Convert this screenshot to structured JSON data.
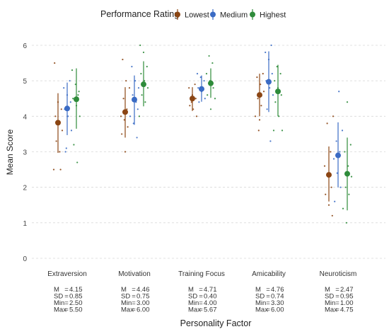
{
  "chart_data": {
    "type": "scatter",
    "title": "",
    "xlabel": "Personality Factor",
    "ylabel": "Mean Score",
    "ylim": [
      -0.1,
      6.3
    ],
    "yticks": [
      0,
      1,
      2,
      3,
      4,
      5,
      6
    ],
    "grid": "horizontal",
    "legend": {
      "title": "Performance Rating",
      "placement": "top",
      "entries": [
        "Lowest",
        "Medium",
        "Highest"
      ]
    },
    "categories": [
      "Extraversion",
      "Motivation",
      "Training Focus",
      "Amicability",
      "Neuroticism"
    ],
    "series": [
      {
        "name": "Lowest",
        "color": "#8B4513",
        "mean": [
          3.82,
          4.12,
          4.5,
          4.6,
          2.35
        ],
        "lower": [
          2.97,
          3.4,
          4.15,
          4.0,
          1.6
        ],
        "upper": [
          4.65,
          4.82,
          4.82,
          5.2,
          3.15
        ],
        "raw": [
          [
            2.5,
            3.0,
            3.3,
            3.6,
            3.8,
            4.0,
            4.2,
            4.4,
            5.5,
            2.5
          ],
          [
            3.0,
            3.5,
            3.7,
            3.9,
            4.0,
            4.2,
            4.5,
            4.8,
            5.0,
            5.6
          ],
          [
            4.0,
            4.2,
            4.3,
            4.5,
            4.6,
            4.8,
            4.9,
            4.4
          ],
          [
            3.6,
            4.0,
            4.3,
            4.5,
            4.7,
            4.9,
            5.1,
            5.2,
            3.9
          ],
          [
            1.2,
            1.5,
            1.8,
            2.0,
            2.3,
            2.6,
            3.0,
            3.8,
            4.0
          ]
        ]
      },
      {
        "name": "Medium",
        "color": "#3A6BC4",
        "mean": [
          4.22,
          4.47,
          4.77,
          4.97,
          2.9
        ],
        "lower": [
          3.47,
          3.76,
          4.41,
          4.12,
          2.0
        ],
        "upper": [
          4.95,
          5.15,
          5.15,
          5.83,
          3.83
        ],
        "raw": [
          [
            3.0,
            3.6,
            4.0,
            4.2,
            4.4,
            4.6,
            4.8,
            5.0,
            3.1
          ],
          [
            3.4,
            3.8,
            4.0,
            4.4,
            4.6,
            4.8,
            5.0,
            5.4,
            4.2
          ],
          [
            4.4,
            4.5,
            4.7,
            4.8,
            5.0,
            5.1,
            5.2
          ],
          [
            3.3,
            4.2,
            4.6,
            4.8,
            5.0,
            5.2,
            5.6,
            5.8,
            6.0
          ],
          [
            1.6,
            2.0,
            2.4,
            2.8,
            3.0,
            3.3,
            3.6,
            4.7
          ]
        ]
      },
      {
        "name": "Highest",
        "color": "#2E8B3A",
        "mean": [
          4.48,
          4.9,
          4.93,
          4.7,
          2.38
        ],
        "lower": [
          3.65,
          4.28,
          4.52,
          4.0,
          1.35
        ],
        "upper": [
          5.35,
          5.55,
          5.35,
          5.45,
          3.4
        ],
        "raw": [
          [
            2.7,
            3.2,
            4.0,
            4.3,
            4.5,
            4.7,
            4.9,
            5.3,
            4.6
          ],
          [
            4.0,
            4.4,
            4.6,
            4.8,
            5.0,
            5.2,
            5.4,
            5.8,
            6.0
          ],
          [
            4.2,
            4.6,
            4.8,
            5.0,
            5.2,
            5.5,
            5.7,
            4.5
          ],
          [
            3.6,
            4.0,
            4.4,
            4.6,
            4.8,
            5.0,
            5.2,
            5.4,
            3.6
          ],
          [
            1.0,
            1.4,
            1.8,
            2.0,
            2.3,
            2.6,
            3.0,
            3.2,
            4.4
          ]
        ]
      }
    ],
    "stats": [
      {
        "M": "4.15",
        "SD": "0.85",
        "Min": "2.50",
        "Max": "5.50"
      },
      {
        "M": "4.46",
        "SD": "0.75",
        "Min": "3.00",
        "Max": "6.00"
      },
      {
        "M": "4.71",
        "SD": "0.40",
        "Min": "4.00",
        "Max": "5.67"
      },
      {
        "M": "4.76",
        "SD": "0.74",
        "Min": "3.30",
        "Max": "6.00"
      },
      {
        "M": "2.47",
        "SD": "0.95",
        "Min": "1.00",
        "Max": "4.75"
      }
    ]
  }
}
